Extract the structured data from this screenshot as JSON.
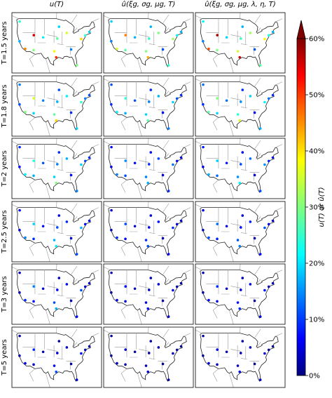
{
  "columns": [
    "u(T)",
    "û(ξg, σg, μg, T)",
    "û(ξg, σg, μg, λ, η, T)"
  ],
  "rows": [
    "T=1.5 years",
    "T=1.8 years",
    "T=2 years",
    "T=2.5 years",
    "T=3 years",
    "T=5 years"
  ],
  "stations": {
    "lon": [
      -122.3,
      -122.4,
      -118.2,
      -112,
      -105,
      -96.8,
      -95.4,
      -94.6,
      -93.3,
      -87.6,
      -84.4,
      -80.2,
      -77,
      -74,
      -71,
      -111.9
    ],
    "lat": [
      47.6,
      37.8,
      34,
      33.4,
      39.7,
      32.8,
      29.8,
      39.1,
      45,
      41.9,
      33.7,
      25.8,
      38.9,
      40.7,
      42.4,
      40.8
    ]
  },
  "panels": [
    [
      [
        25,
        18,
        45,
        30,
        22,
        38,
        50,
        28,
        20,
        35,
        15,
        30,
        40,
        25,
        20,
        55
      ],
      [
        20,
        15,
        35,
        28,
        18,
        30,
        42,
        25,
        18,
        30,
        12,
        25,
        32,
        22,
        18,
        45
      ],
      [
        22,
        15,
        48,
        30,
        20,
        35,
        55,
        26,
        18,
        32,
        12,
        28,
        38,
        24,
        18,
        58
      ]
    ],
    [
      [
        15,
        12,
        30,
        20,
        15,
        28,
        40,
        18,
        12,
        22,
        10,
        20,
        25,
        15,
        12,
        35
      ],
      [
        12,
        10,
        22,
        18,
        12,
        20,
        28,
        15,
        10,
        18,
        8,
        15,
        20,
        12,
        10,
        25
      ],
      [
        14,
        10,
        28,
        20,
        14,
        25,
        35,
        16,
        10,
        20,
        8,
        18,
        22,
        14,
        10,
        30
      ]
    ],
    [
      [
        10,
        8,
        22,
        18,
        12,
        20,
        30,
        15,
        10,
        18,
        8,
        15,
        20,
        12,
        10,
        25
      ],
      [
        8,
        6,
        15,
        12,
        8,
        15,
        18,
        10,
        8,
        12,
        5,
        10,
        14,
        8,
        6,
        16
      ],
      [
        9,
        6,
        18,
        14,
        9,
        16,
        22,
        12,
        8,
        14,
        5,
        12,
        16,
        10,
        7,
        20
      ]
    ],
    [
      [
        6,
        5,
        15,
        10,
        8,
        18,
        22,
        12,
        6,
        10,
        5,
        12,
        18,
        8,
        6,
        20
      ],
      [
        5,
        4,
        10,
        8,
        5,
        10,
        12,
        7,
        5,
        8,
        3,
        7,
        10,
        5,
        4,
        12
      ],
      [
        5,
        4,
        12,
        9,
        6,
        12,
        15,
        8,
        5,
        9,
        3,
        8,
        12,
        6,
        4,
        14
      ]
    ],
    [
      [
        4,
        3,
        10,
        8,
        5,
        12,
        18,
        8,
        4,
        8,
        3,
        8,
        12,
        5,
        4,
        15
      ],
      [
        3,
        2,
        6,
        5,
        3,
        6,
        8,
        4,
        3,
        5,
        2,
        4,
        6,
        3,
        2,
        8
      ],
      [
        3,
        2,
        8,
        6,
        4,
        8,
        10,
        5,
        3,
        6,
        2,
        5,
        8,
        4,
        3,
        10
      ]
    ],
    [
      [
        2,
        2,
        6,
        5,
        3,
        8,
        12,
        5,
        2,
        5,
        2,
        5,
        8,
        3,
        2,
        10
      ],
      [
        2,
        1,
        4,
        3,
        2,
        4,
        5,
        2,
        2,
        3,
        1,
        2,
        4,
        2,
        1,
        5
      ],
      [
        2,
        1,
        5,
        4,
        2,
        5,
        6,
        3,
        2,
        4,
        1,
        3,
        5,
        2,
        1,
        6
      ]
    ]
  ],
  "colorbar": {
    "label": "u(T) or û(T)",
    "lim": [
      0,
      60
    ],
    "ticks": [
      {
        "value": 0,
        "label": "0%"
      },
      {
        "value": 10,
        "label": "10%"
      },
      {
        "value": 20,
        "label": "20%"
      },
      {
        "value": 30,
        "label": "30%"
      },
      {
        "value": 40,
        "label": "40%"
      },
      {
        "value": 50,
        "label": "50%"
      },
      {
        "value": 60,
        "label": "60%"
      }
    ]
  }
}
